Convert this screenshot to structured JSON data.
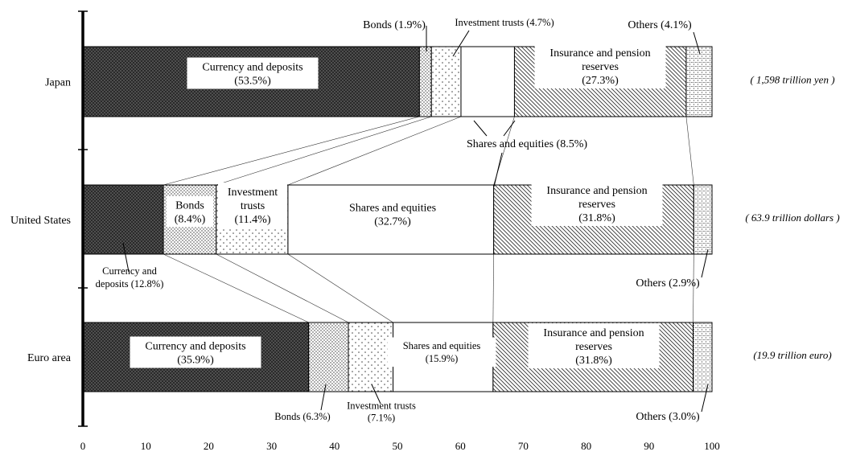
{
  "chart_data": {
    "type": "bar",
    "orientation": "horizontal",
    "stacked": true,
    "categories": [
      "Japan",
      "United States",
      "Euro area"
    ],
    "totals": [
      "( 1,598 trillion yen )",
      "( 63.9 trillion dollars )",
      "(19.9 trillion euro)"
    ],
    "series": [
      {
        "name": "Currency and deposits",
        "values": [
          53.5,
          12.8,
          35.9
        ],
        "color": "#555555",
        "pattern": "crosshatch-dark"
      },
      {
        "name": "Bonds",
        "values": [
          1.9,
          8.4,
          6.3
        ],
        "color": "#dddddd",
        "pattern": "dense-dots"
      },
      {
        "name": "Investment trusts",
        "values": [
          4.7,
          11.4,
          7.1
        ],
        "color": "#ffffff",
        "pattern": "sparse-dots"
      },
      {
        "name": "Shares and equities",
        "values": [
          8.5,
          32.7,
          15.9
        ],
        "color": "#ffffff",
        "pattern": "none"
      },
      {
        "name": "Insurance and pension reserves",
        "values": [
          27.3,
          31.8,
          31.8
        ],
        "color": "#ffffff",
        "pattern": "diagonal-lines"
      },
      {
        "name": "Others",
        "values": [
          4.1,
          2.9,
          3.0
        ],
        "color": "#ffffff",
        "pattern": "grid"
      }
    ],
    "segment_labels": [
      [
        [
          "Currency and deposits",
          "(53.5%)"
        ],
        [
          "Bonds (1.9%)"
        ],
        [
          "Investment trusts (4.7%)"
        ],
        [
          "Shares and equities (8.5%)"
        ],
        [
          "Insurance and pension",
          "reserves",
          "(27.3%)"
        ],
        [
          "Others (4.1%)"
        ]
      ],
      [
        [
          "Currency and",
          "deposits (12.8%)"
        ],
        [
          "Bonds",
          "(8.4%)"
        ],
        [
          "Investment",
          "trusts",
          "(11.4%)"
        ],
        [
          "Shares and equities",
          "(32.7%)"
        ],
        [
          "Insurance and pension",
          "reserves",
          "(31.8%)"
        ],
        [
          "Others (2.9%)"
        ]
      ],
      [
        [
          "Currency and deposits",
          "(35.9%)"
        ],
        [
          "Bonds (6.3%)"
        ],
        [
          "Investment trusts",
          "(7.1%)"
        ],
        [
          "Shares and equities",
          "(15.9%)"
        ],
        [
          "Insurance and pension",
          "reserves",
          "(31.8%)"
        ],
        [
          "Others (3.0%)"
        ]
      ]
    ],
    "x_ticks": [
      "0",
      "10",
      "20",
      "30",
      "40",
      "50",
      "60",
      "70",
      "80",
      "90",
      "100"
    ],
    "xlim": [
      0,
      100
    ],
    "xlabel": "",
    "ylabel": "",
    "title": "",
    "grid": false,
    "legend": "none"
  }
}
